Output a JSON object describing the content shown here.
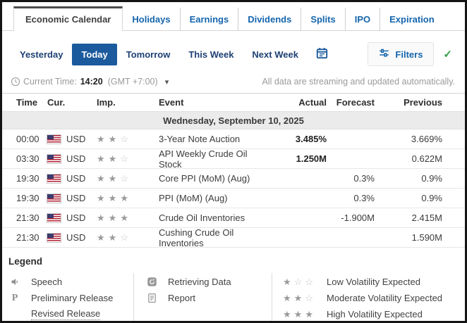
{
  "glyphs": {
    "check": "✓",
    "chevron_down": "▾",
    "star_filled": "★",
    "star_empty": "☆",
    "preliminary": "P"
  },
  "tabs": [
    {
      "label": "Economic Calendar",
      "active": true
    },
    {
      "label": "Holidays"
    },
    {
      "label": "Earnings"
    },
    {
      "label": "Dividends"
    },
    {
      "label": "Splits"
    },
    {
      "label": "IPO"
    },
    {
      "label": "Expiration"
    }
  ],
  "period_bar": {
    "buttons": [
      {
        "label": "Yesterday"
      },
      {
        "label": "Today",
        "active": true
      },
      {
        "label": "Tomorrow"
      },
      {
        "label": "This Week"
      },
      {
        "label": "Next Week"
      }
    ],
    "filters_label": "Filters"
  },
  "status_bar": {
    "current_time_label": "Current Time:",
    "current_time": "14:20",
    "timezone": "(GMT +7:00)",
    "streaming_note": "All data are streaming and updated automatically."
  },
  "table": {
    "headers": {
      "time": "Time",
      "cur": "Cur.",
      "imp": "Imp.",
      "event": "Event",
      "actual": "Actual",
      "forecast": "Forecast",
      "previous": "Previous"
    },
    "date_header": "Wednesday, September 10, 2025",
    "rows": [
      {
        "time": "00:00",
        "currency": "USD",
        "importance": 2,
        "event": "3-Year Note Auction",
        "actual": "3.485%",
        "forecast": "",
        "previous": "3.669%"
      },
      {
        "time": "03:30",
        "currency": "USD",
        "importance": 2,
        "event": "API Weekly Crude Oil Stock",
        "actual": "1.250M",
        "forecast": "",
        "previous": "0.622M"
      },
      {
        "time": "19:30",
        "currency": "USD",
        "importance": 2,
        "event": "Core PPI (MoM) (Aug)",
        "actual": "",
        "forecast": "0.3%",
        "previous": "0.9%"
      },
      {
        "time": "19:30",
        "currency": "USD",
        "importance": 3,
        "event": "PPI (MoM) (Aug)",
        "actual": "",
        "forecast": "0.3%",
        "previous": "0.9%"
      },
      {
        "time": "21:30",
        "currency": "USD",
        "importance": 3,
        "event": "Crude Oil Inventories",
        "actual": "",
        "forecast": "-1.900M",
        "previous": "2.415M"
      },
      {
        "time": "21:30",
        "currency": "USD",
        "importance": 2,
        "event": "Cushing Crude Oil Inventories",
        "actual": "",
        "forecast": "",
        "previous": "1.590M"
      }
    ]
  },
  "legend": {
    "title": "Legend",
    "speech_label": "Speech",
    "preliminary_label": "Preliminary Release",
    "revised_label": "Revised Release",
    "retrieving_label": "Retrieving Data",
    "report_label": "Report",
    "volatility": [
      {
        "stars": 1,
        "label": "Low Volatility Expected"
      },
      {
        "stars": 2,
        "label": "Moderate Volatility Expected"
      },
      {
        "stars": 3,
        "label": "High Volatility Expected"
      }
    ]
  },
  "colors": {
    "accent_blue": "#1565ad",
    "active_button_blue": "#1b5a9d",
    "nav_text_navy": "#1d4073",
    "check_green": "#2f9e44",
    "date_row_bg": "#ebebeb"
  }
}
